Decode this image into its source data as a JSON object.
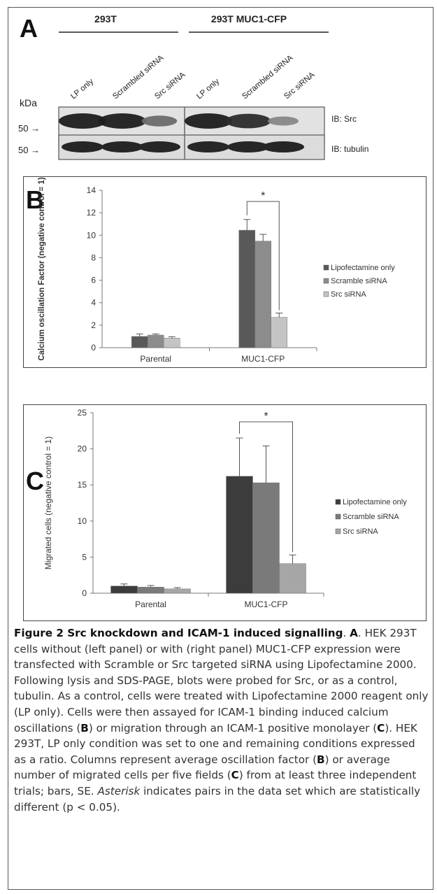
{
  "panelA": {
    "label": "A",
    "group_left": "293T",
    "group_right": "293T MUC1-CFP",
    "lanes": [
      "LP only",
      "Scrambled siRNA",
      "Src siRNA",
      "LP only",
      "Scrambled siRNA",
      "Src siRNA"
    ],
    "kda_label": "kDa",
    "marker_src": "50 →",
    "marker_tub": "50 →",
    "ib_src": "IB: Src",
    "ib_tub": "IB: tubulin",
    "src_band_intensity": [
      1.0,
      1.0,
      0.45,
      1.0,
      0.9,
      0.25
    ]
  },
  "panelB": {
    "label": "B"
  },
  "panelC": {
    "label": "C"
  },
  "chart_data": [
    {
      "type": "bar",
      "panel": "B",
      "categories": [
        "Parental",
        "MUC1-CFP"
      ],
      "series": [
        {
          "name": "Lipofectamine only",
          "color": "#595959",
          "values": [
            1.0,
            10.45
          ],
          "errors": [
            0.22,
            0.95
          ]
        },
        {
          "name": "Scramble siRNA",
          "color": "#8c8c8c",
          "values": [
            1.12,
            9.48
          ],
          "errors": [
            0.1,
            0.6
          ]
        },
        {
          "name": "Src siRNA",
          "color": "#c4c4c4",
          "values": [
            0.85,
            2.7
          ],
          "errors": [
            0.12,
            0.38
          ]
        }
      ],
      "ylabel": "Calcium oscillation Factor (negative control = 1)",
      "ylim": [
        0,
        14
      ],
      "yticks": [
        0,
        2,
        4,
        6,
        8,
        10,
        12,
        14
      ],
      "grid": false,
      "legend": "right",
      "annotation": "*"
    },
    {
      "type": "bar",
      "panel": "C",
      "categories": [
        "Parental",
        "MUC1-CFP"
      ],
      "series": [
        {
          "name": "Lipofectamine only",
          "color": "#3c3c3c",
          "values": [
            1.0,
            16.2
          ],
          "errors": [
            0.28,
            5.3
          ]
        },
        {
          "name": "Scramble siRNA",
          "color": "#7a7a7a",
          "values": [
            0.85,
            15.3
          ],
          "errors": [
            0.22,
            5.1
          ]
        },
        {
          "name": "Src siRNA",
          "color": "#a6a6a6",
          "values": [
            0.6,
            4.1
          ],
          "errors": [
            0.18,
            1.2
          ]
        }
      ],
      "ylabel": "Migrated cells (negative control = 1)",
      "ylim": [
        0,
        25
      ],
      "yticks": [
        0,
        5,
        10,
        15,
        20,
        25
      ],
      "grid": false,
      "legend": "right",
      "annotation": "*"
    }
  ],
  "caption": {
    "title": "Figure 2 Src knockdown and ICAM-1 induced signalling",
    "seg1": ". ",
    "a": "A",
    "seg2": ". HEK 293T cells without (left panel) or with (right panel) MUC1-CFP expression were transfected with Scramble or Src targeted siRNA using Lipofectamine 2000. Following lysis and SDS-PAGE, blots were probed for Src, or as a control, tubulin. As a control, cells were treated with Lipofectamine 2000 reagent only (LP only). Cells were then assayed for ICAM-1 binding induced calcium oscillations (",
    "b1": "B",
    "seg3": ") or migration through an ICAM-1 positive monolayer (",
    "c1": "C",
    "seg4": "). HEK 293T, LP only condition was set to one and remaining conditions expressed as a ratio. Columns represent average oscillation factor (",
    "b2": "B",
    "seg5": ") or average number of migrated cells per five fields (",
    "c2": "C",
    "seg6": ") from at least three independent trials; bars, SE. ",
    "ast": "Asterisk",
    "seg7": " indicates pairs in the data set which are statistically different (p < 0.05)."
  }
}
